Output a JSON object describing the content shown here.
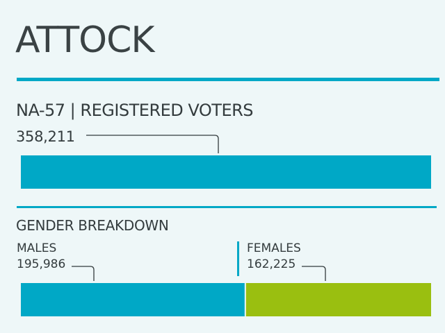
{
  "header": {
    "title": "ATTOCK",
    "subtitle": "NA-57 | REGISTERED VOTERS",
    "section_title": "GENDER BREAKDOWN"
  },
  "colors": {
    "accent": "#00a8c6",
    "female": "#9abf10",
    "background": "#eef7f8"
  },
  "chart_data": [
    {
      "type": "bar",
      "title": "NA-57 | REGISTERED VOTERS",
      "categories": [
        "REGISTERED VOTERS"
      ],
      "values": [
        358211
      ],
      "value_labels": [
        "358,211"
      ]
    },
    {
      "type": "bar",
      "stacked": true,
      "title": "GENDER BREAKDOWN",
      "categories": [
        "MALES",
        "FEMALES"
      ],
      "values": [
        195986,
        162225
      ],
      "value_labels": [
        "195,986",
        "162,225"
      ],
      "colors": [
        "#00a8c6",
        "#9abf10"
      ]
    }
  ]
}
